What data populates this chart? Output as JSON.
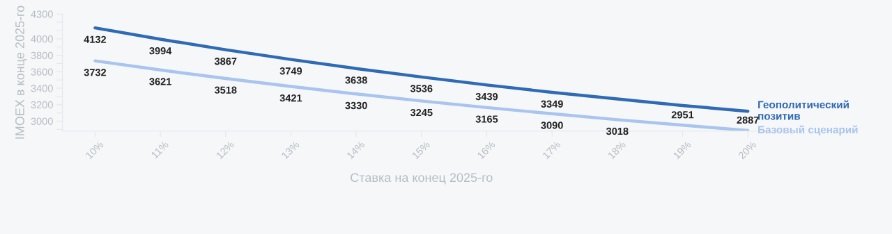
{
  "chart_data": {
    "type": "line",
    "xlabel": "Ставка на конец 2025-го",
    "ylabel": "IMOEX в конце 2025-го",
    "categories": [
      "10%",
      "11%",
      "12%",
      "13%",
      "14%",
      "15%",
      "16%",
      "17%",
      "18%",
      "19%",
      "20%"
    ],
    "series": [
      {
        "name": "Геополитический позитив",
        "color": "#2f6ab5",
        "values": [
          4132,
          3994,
          3867,
          3749,
          3638,
          3536,
          3439,
          3349,
          3270,
          3190,
          3120
        ],
        "value_labels": [
          "4132",
          "3994",
          "3867",
          "3749",
          "3638",
          "3536",
          "3439",
          "3349",
          null,
          null,
          null
        ]
      },
      {
        "name": "Базовый сценарий",
        "color": "#a9c4ef",
        "values": [
          3732,
          3621,
          3518,
          3421,
          3330,
          3245,
          3165,
          3090,
          3018,
          2951,
          2887
        ],
        "value_labels": [
          "3732",
          "3621",
          "3518",
          "3421",
          "3330",
          "3245",
          "3165",
          "3090",
          "3018",
          "2951",
          "2887"
        ]
      }
    ],
    "ylim": [
      2880,
      4300
    ],
    "yticks": [
      {
        "value": 2900,
        "label": null
      },
      3000,
      {
        "value": 3100,
        "label": null
      },
      3200,
      {
        "value": 3300,
        "label": null
      },
      3400,
      {
        "value": 3500,
        "label": null
      },
      3600,
      {
        "value": 3700,
        "label": null
      },
      3800,
      {
        "value": 3900,
        "label": null
      },
      4000,
      {
        "value": 4100,
        "label": null
      },
      {
        "value": 4200,
        "label": null
      },
      4300
    ],
    "grid": false,
    "legend": false,
    "marker": "none",
    "line_style": "solid"
  }
}
